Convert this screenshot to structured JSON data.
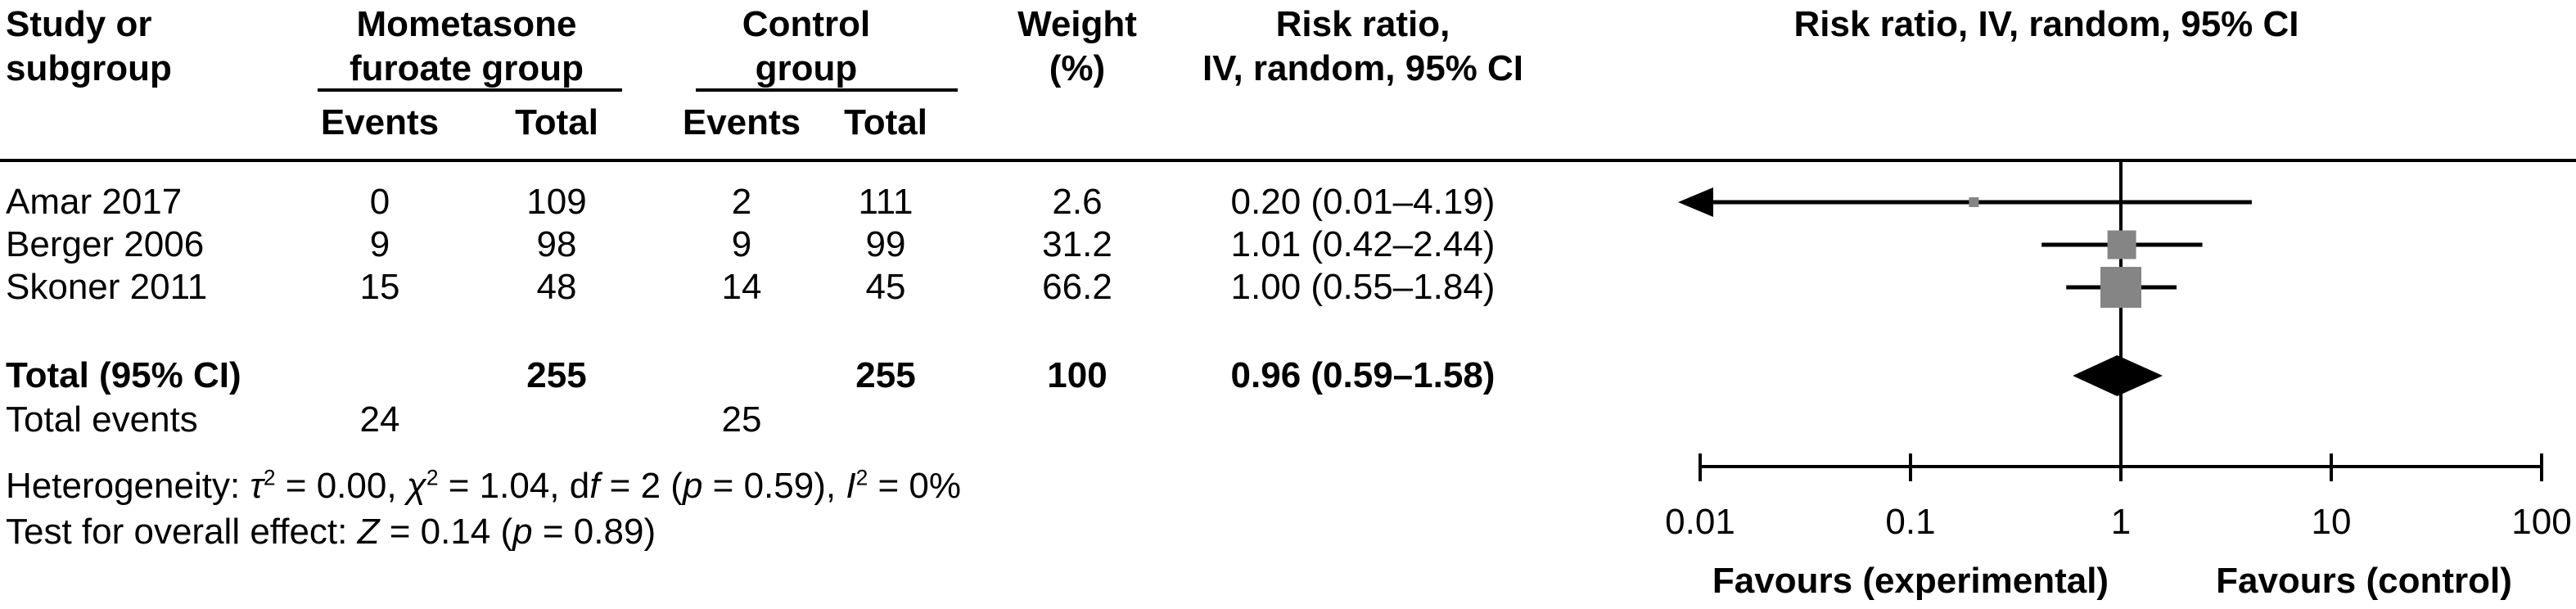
{
  "table": {
    "header": {
      "study_line1": "Study or",
      "study_line2": "subgroup",
      "group1_line1": "Mometasone",
      "group1_line2": "furoate group",
      "group2_line1": "Control",
      "group2_line2": "group",
      "events1": "Events",
      "total1": "Total",
      "events2": "Events",
      "total2": "Total",
      "weight_line1": "Weight",
      "weight_line2": "(%)",
      "rr_line1": "Risk ratio,",
      "rr_line2": "IV, random, 95% CI"
    },
    "rows": [
      {
        "study": "Amar 2017",
        "e1": "0",
        "t1": "109",
        "e2": "2",
        "t2": "111",
        "weight": "2.6",
        "rr": "0.20 (0.01–4.19)"
      },
      {
        "study": "Berger 2006",
        "e1": "9",
        "t1": "98",
        "e2": "9",
        "t2": "99",
        "weight": "31.2",
        "rr": "1.01 (0.42–2.44)"
      },
      {
        "study": "Skoner 2011",
        "e1": "15",
        "t1": "48",
        "e2": "14",
        "t2": "45",
        "weight": "66.2",
        "rr": "1.00 (0.55–1.84)"
      }
    ],
    "total_row": {
      "label": "Total (95% CI)",
      "t1": "255",
      "t2": "255",
      "weight": "100",
      "rr": "0.96 (0.59–1.58)"
    },
    "total_events": {
      "label": "Total events",
      "e1": "24",
      "e2": "25"
    },
    "heterogeneity_segments": [
      {
        "t": "Heterogeneity: "
      },
      {
        "t": "τ",
        "i": true
      },
      {
        "t": "2",
        "sup": true
      },
      {
        "t": " = 0.00, "
      },
      {
        "t": "χ",
        "i": true
      },
      {
        "t": "2",
        "sup": true
      },
      {
        "t": " = 1.04, d"
      },
      {
        "t": "f",
        "i": true
      },
      {
        "t": " = 2 ("
      },
      {
        "t": "p",
        "i": true
      },
      {
        "t": " = 0.59), "
      },
      {
        "t": "I",
        "i": true
      },
      {
        "t": "2",
        "sup": true
      },
      {
        "t": " = 0%"
      }
    ],
    "overall_effect_segments": [
      {
        "t": "Test for overall effect: "
      },
      {
        "t": "Z",
        "i": true
      },
      {
        "t": " = 0.14 ("
      },
      {
        "t": "p",
        "i": true
      },
      {
        "t": " = 0.89)"
      }
    ]
  },
  "chart_data": {
    "type": "forest",
    "title": "Risk ratio, IV, random, 95% CI",
    "x_scale": "log",
    "x_min": 0.01,
    "x_max": 100,
    "x_ticks": [
      0.01,
      0.1,
      1,
      10,
      100
    ],
    "x_tick_labels": [
      "0.01",
      "0.1",
      "1",
      "10",
      "100"
    ],
    "null_line": 1,
    "x_axis_left_label": "Favours (experimental)",
    "x_axis_right_label": "Favours (control)",
    "studies": [
      {
        "name": "Amar 2017",
        "rr": 0.2,
        "ci_low": 0.01,
        "ci_high": 4.19,
        "weight": 2.6,
        "ci_low_arrow": true
      },
      {
        "name": "Berger 2006",
        "rr": 1.01,
        "ci_low": 0.42,
        "ci_high": 2.44,
        "weight": 31.2,
        "ci_low_arrow": false
      },
      {
        "name": "Skoner 2011",
        "rr": 1.0,
        "ci_low": 0.55,
        "ci_high": 1.84,
        "weight": 66.2,
        "ci_low_arrow": false
      }
    ],
    "total": {
      "rr": 0.96,
      "ci_low": 0.59,
      "ci_high": 1.58,
      "weight": 100
    },
    "colors": {
      "square": "#858585",
      "diamond": "#000000",
      "line": "#000000"
    }
  }
}
